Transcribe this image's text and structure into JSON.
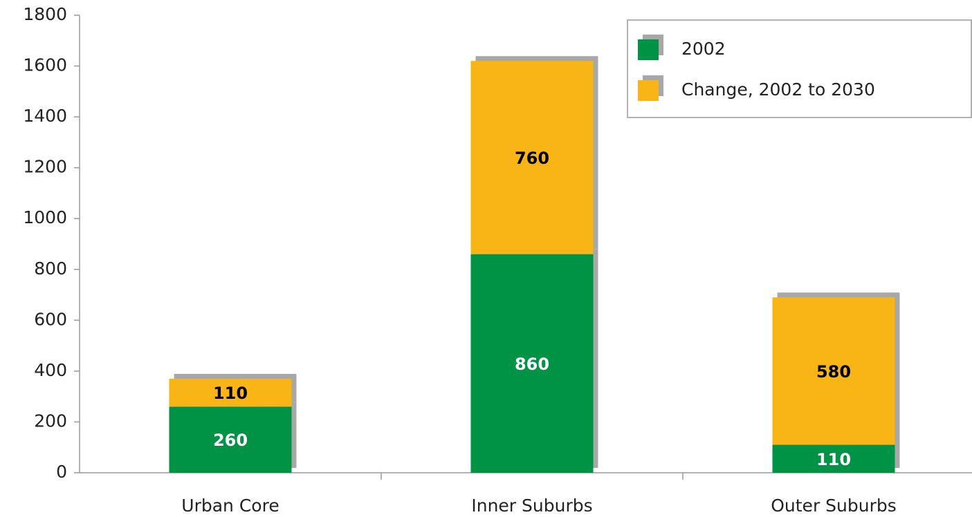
{
  "chart_data": {
    "type": "bar",
    "stacked": true,
    "categories": [
      "Urban Core",
      "Inner Suburbs",
      "Outer Suburbs"
    ],
    "series": [
      {
        "name": "2002",
        "color": "#009245",
        "label_color": "#ffffff",
        "values": [
          260,
          860,
          110
        ]
      },
      {
        "name": "Change, 2002 to 2030",
        "color": "#f9b515",
        "label_color": "#000000",
        "values": [
          110,
          760,
          580
        ]
      }
    ],
    "ylim": [
      0,
      1800
    ],
    "yticks": [
      0,
      200,
      400,
      600,
      800,
      1000,
      1200,
      1400,
      1600,
      1800
    ],
    "legend": "upper right"
  }
}
